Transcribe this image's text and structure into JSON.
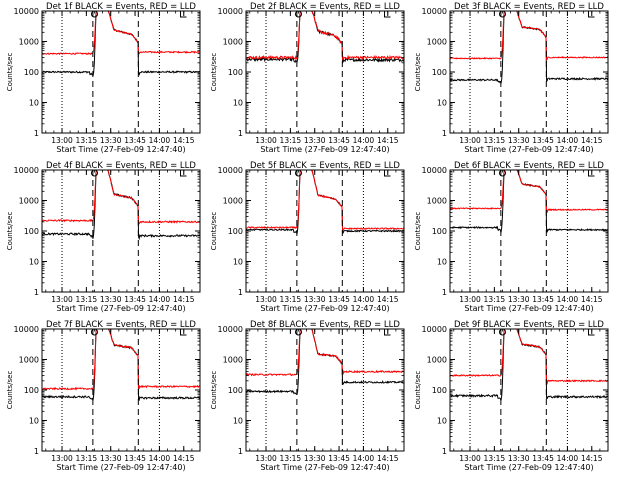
{
  "chart_data": [
    {
      "type": "line",
      "title": "Det 1f BLACK = Events, RED = LLD",
      "xlabel": "Start Time (27-Feb-09 12:47:40)",
      "ylabel": "Counts/sec",
      "series": [
        {
          "color": "#ff0000",
          "pre": 400,
          "post": 450,
          "decay": 1700,
          "knee": 2400,
          "noise": 0.05
        },
        {
          "color": "#000000",
          "pre": 100,
          "post": 100,
          "dip": 70,
          "decay": 1700,
          "knee": 2400,
          "noise": 0.06
        }
      ]
    },
    {
      "type": "line",
      "title": "Det 2f BLACK = Events, RED = LLD",
      "xlabel": "Start Time (27-Feb-09 12:47:40)",
      "ylabel": "Counts/sec",
      "series": [
        {
          "color": "#ff0000",
          "pre": 300,
          "post": 300,
          "decay": 1500,
          "knee": 2200,
          "noise": 0.1
        },
        {
          "color": "#000000",
          "pre": 260,
          "post": 250,
          "dip": 200,
          "decay": 1500,
          "knee": 2200,
          "noise": 0.1
        }
      ]
    },
    {
      "type": "line",
      "title": "Det 3f BLACK = Events, RED = LLD",
      "xlabel": "Start Time (27-Feb-09 12:47:40)",
      "ylabel": "Counts/sec",
      "series": [
        {
          "color": "#ff0000",
          "pre": 280,
          "post": 300,
          "decay": 2500,
          "knee": 3000,
          "noise": 0.04
        },
        {
          "color": "#000000",
          "pre": 55,
          "post": 60,
          "dip": 40,
          "decay": 2500,
          "knee": 3000,
          "noise": 0.06
        }
      ]
    },
    {
      "type": "line",
      "title": "Det 4f BLACK = Events, RED = LLD",
      "xlabel": "Start Time (27-Feb-09 12:47:40)",
      "ylabel": "Counts/sec",
      "series": [
        {
          "color": "#ff0000",
          "pre": 220,
          "post": 200,
          "decay": 1200,
          "knee": 1600,
          "noise": 0.06
        },
        {
          "color": "#000000",
          "pre": 80,
          "post": 70,
          "dip": 55,
          "decay": 1200,
          "knee": 1600,
          "noise": 0.07
        }
      ]
    },
    {
      "type": "line",
      "title": "Det 5f BLACK = Events, RED = LLD",
      "xlabel": "Start Time (27-Feb-09 12:47:40)",
      "ylabel": "Counts/sec",
      "series": [
        {
          "color": "#ff0000",
          "pre": 130,
          "post": 120,
          "decay": 1100,
          "knee": 1500,
          "noise": 0.05
        },
        {
          "color": "#000000",
          "pre": 110,
          "post": 100,
          "dip": 80,
          "decay": 1100,
          "knee": 1500,
          "noise": 0.05
        }
      ]
    },
    {
      "type": "line",
      "title": "Det 6f BLACK = Events, RED = LLD",
      "xlabel": "Start Time (27-Feb-09 12:47:40)",
      "ylabel": "Counts/sec",
      "series": [
        {
          "color": "#ff0000",
          "pre": 550,
          "post": 500,
          "decay": 2800,
          "knee": 3500,
          "noise": 0.04
        },
        {
          "color": "#000000",
          "pre": 130,
          "post": 110,
          "dip": 90,
          "decay": 2800,
          "knee": 3500,
          "noise": 0.05
        }
      ]
    },
    {
      "type": "line",
      "title": "Det 7f BLACK = Events, RED = LLD",
      "xlabel": "Start Time (27-Feb-09 12:47:40)",
      "ylabel": "Counts/sec",
      "series": [
        {
          "color": "#ff0000",
          "pre": 110,
          "post": 130,
          "decay": 2400,
          "knee": 3000,
          "noise": 0.06
        },
        {
          "color": "#000000",
          "pre": 60,
          "post": 55,
          "dip": 45,
          "decay": 2400,
          "knee": 3000,
          "noise": 0.07
        }
      ]
    },
    {
      "type": "line",
      "title": "Det 8f BLACK = Events, RED = LLD",
      "xlabel": "Start Time (27-Feb-09 12:47:40)",
      "ylabel": "Counts/sec",
      "series": [
        {
          "color": "#ff0000",
          "pre": 320,
          "post": 400,
          "decay": 1300,
          "knee": 1500,
          "noise": 0.06
        },
        {
          "color": "#000000",
          "pre": 90,
          "post": 180,
          "dip": 70,
          "decay": 1300,
          "knee": 1500,
          "noise": 0.06
        }
      ]
    },
    {
      "type": "line",
      "title": "Det 9f BLACK = Events, RED = LLD",
      "xlabel": "Start Time (27-Feb-09 12:47:40)",
      "ylabel": "Counts/sec",
      "series": [
        {
          "color": "#ff0000",
          "pre": 300,
          "post": 200,
          "decay": 2600,
          "knee": 3200,
          "noise": 0.05
        },
        {
          "color": "#000000",
          "pre": 65,
          "post": 60,
          "dip": 45,
          "decay": 2600,
          "knee": 3200,
          "noise": 0.07
        }
      ]
    }
  ],
  "axes": {
    "x_range": [
      "12:47:40",
      "14:25:00"
    ],
    "x_ticks": [
      "13:00",
      "13:15",
      "13:30",
      "13:45",
      "14:00",
      "14:15"
    ],
    "y_scale": "log",
    "y_range": [
      1,
      10000
    ],
    "y_ticks": [
      "1",
      "10",
      "100",
      "1000",
      "10000"
    ],
    "dotted_lines": [
      "13:00",
      "14:00"
    ],
    "dashed_lines": [
      "13:19",
      "13:47"
    ]
  }
}
